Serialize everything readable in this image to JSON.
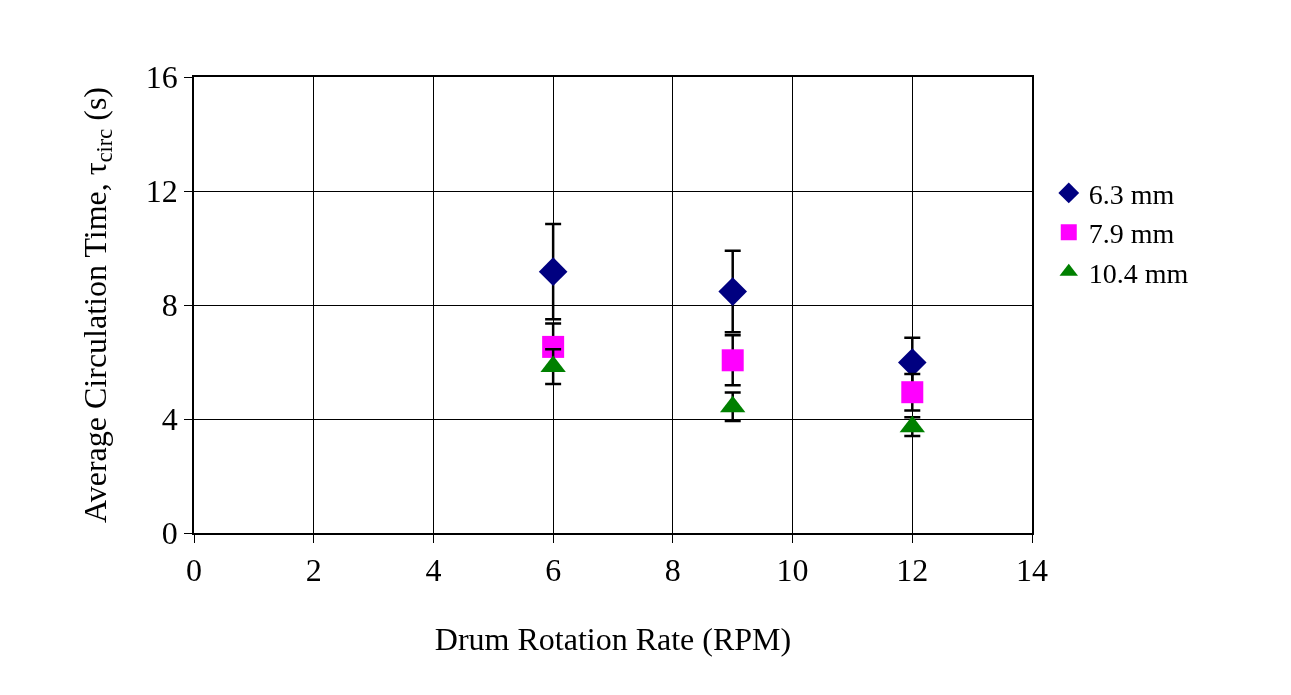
{
  "chart_data": {
    "type": "scatter",
    "xlabel": "Drum Rotation Rate (RPM)",
    "ylabel": "Average Circulation Time, τ$_{circ}$ (s)",
    "x": [
      6,
      9,
      12
    ],
    "series": [
      {
        "name": "6.3 mm",
        "color": "#000080",
        "marker": "diamond",
        "values": [
          9.17,
          8.47,
          5.98
        ],
        "errors": [
          1.67,
          1.43,
          0.87
        ]
      },
      {
        "name": "7.9 mm",
        "color": "#ff00ff",
        "marker": "square",
        "values": [
          6.53,
          6.06,
          4.94
        ],
        "errors": [
          0.82,
          0.88,
          0.64
        ]
      },
      {
        "name": "10.4 mm",
        "color": "#008000",
        "marker": "triangle",
        "values": [
          5.84,
          4.43,
          3.73
        ],
        "errors": [
          0.61,
          0.5,
          0.33
        ]
      }
    ],
    "xlim": [
      0,
      14
    ],
    "xticks": [
      0,
      2,
      4,
      6,
      8,
      10,
      12,
      14
    ],
    "ylim": [
      0,
      16
    ],
    "yticks": [
      0,
      4,
      8,
      12,
      16
    ],
    "grid": true,
    "legend": "right"
  }
}
